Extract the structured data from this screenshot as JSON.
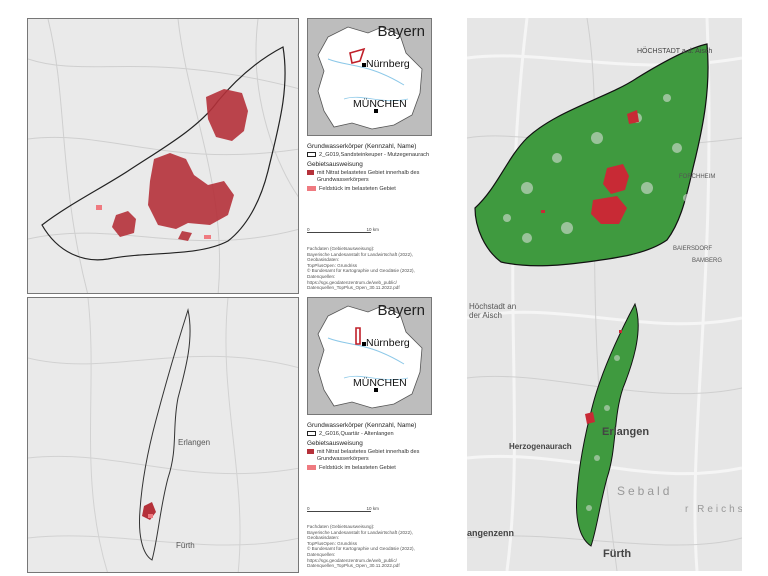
{
  "inset": {
    "title": "Bayern",
    "cities": [
      "Nürnberg",
      "MÜNCHEN"
    ]
  },
  "top_legend": {
    "heading": "Grundwasserkörper (Kennzahl, Name)",
    "body_label": "2_G019,Sandsteinkeuper - Mutzegenaurach",
    "area_heading": "Gebietsausweisung",
    "item1": "mit Nitrat belastetes Gebiet innerhalb des Grundwasserkörpers",
    "item2": "Feldstück im belasteten Gebiet",
    "scale_start": "0",
    "scale_end": "10 km",
    "sources": [
      "Fachdaten (Gebietsausweisung):",
      "Bayerische Landesanstalt für Landwirtschaft (2022),",
      "Geobasisdaten:",
      "TopPlusOpen: Grundriss",
      "© Bundesamt für Kartographie und Geodäsie (2022),",
      "Datenquellen:",
      "https://sgx.geodatenzentrum.de/web_public/",
      "Datenquellen_TopPlus_Open_30.11.2022.pdf"
    ]
  },
  "bottom_legend": {
    "heading": "Grundwasserkörper (Kennzahl, Name)",
    "body_label": "2_G016,Quartär - Altenlangen",
    "area_heading": "Gebietsausweisung",
    "item1": "mit Nitrat belastetes Gebiet innerhalb des Grundwasserkörpers",
    "item2": "Feldstück im belasteten Gebiet",
    "scale_start": "0",
    "scale_end": "10 km",
    "sources": [
      "Fachdaten (Gebietsausweisung):",
      "Bayerische Landesanstalt für Landwirtschaft (2022),",
      "Geobasisdaten:",
      "TopPlusOpen: Grundriss",
      "© Bundesamt für Kartographie und Geodäsie (2022),",
      "Datenquellen:",
      "https://sgx.geodatenzentrum.de/web_public/",
      "Datenquellen_TopPlus_Open_30.11.2022.pdf"
    ]
  },
  "left_map_labels": {
    "erlangen": "Erlangen",
    "fuerth": "Fürth"
  },
  "right_map_labels": {
    "hoechstadt_top": "HÖCHSTADT a.d. Aisch",
    "hoechstadt_mid": "Höchstadt an der Aisch",
    "erlangen": "Erlangen",
    "herzogenaurach": "Herzogenaurach",
    "fuerth": "Fürth",
    "sebald": "Sebald",
    "reichswald": "r Reichsw",
    "langenzenn": "angenzenn",
    "forchheim": "FORCHHEIM",
    "baiersdorf": "BAIERSDORF",
    "bamberg": "BAMBERG"
  },
  "colors": {
    "nitrate_area": "#b5313a",
    "field_plot": "#ef7a80",
    "green_fields": "#2e8b2e",
    "boundary": "#222222",
    "bavaria_fill": "#ffffff",
    "inset_bg": "#bdbdbd"
  }
}
